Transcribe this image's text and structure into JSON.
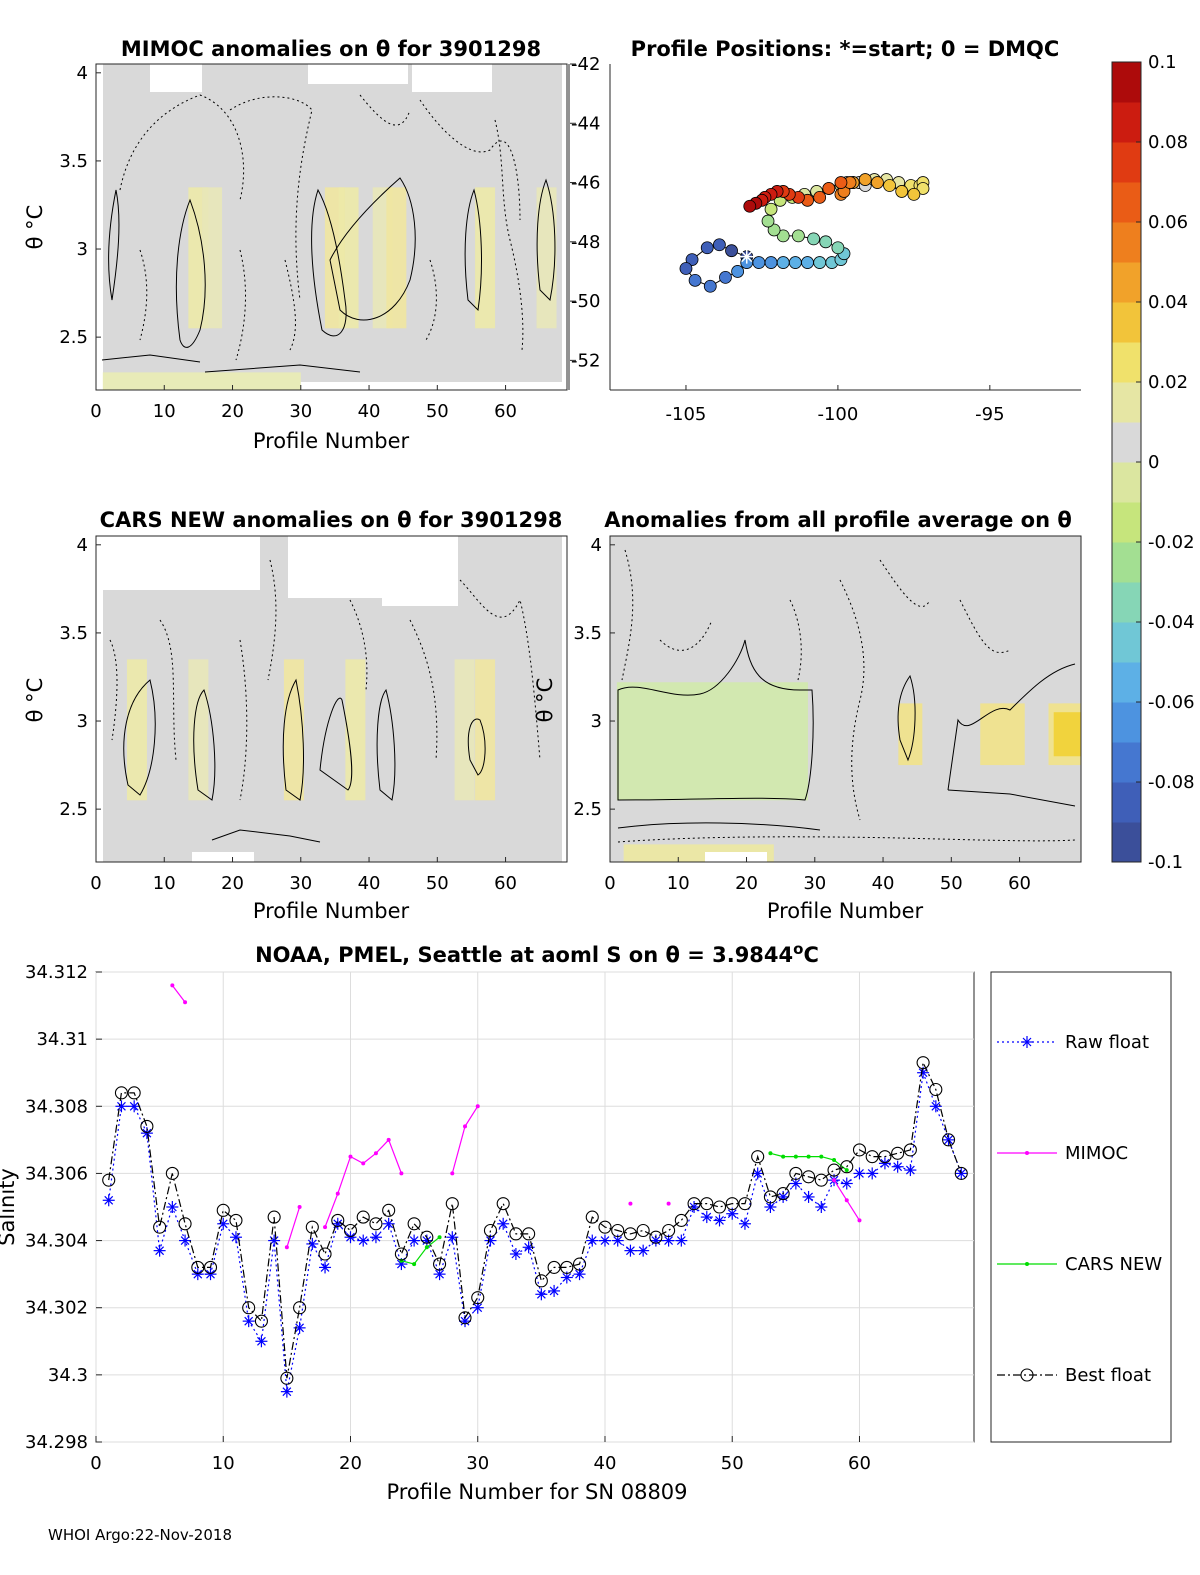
{
  "colorbar": {
    "ticks": [
      "0.1",
      "0.08",
      "0.06",
      "0.04",
      "0.02",
      "0",
      "-0.02",
      "-0.04",
      "-0.06",
      "-0.08",
      "-0.1"
    ],
    "colors": [
      "#3b4f9a",
      "#3f5fb8",
      "#4577d0",
      "#4d93e0",
      "#5db0e6",
      "#70c7d6",
      "#86d6b6",
      "#a3df92",
      "#c6e57c",
      "#dbe6a0",
      "#d9d9d9",
      "#e6e6a4",
      "#f0e16b",
      "#f2c43a",
      "#f1a22a",
      "#ee7f1e",
      "#ea5c16",
      "#e03b12",
      "#cc1c10",
      "#ad0b0b"
    ]
  },
  "footer": "WHOI Argo:22-Nov-2018",
  "chart_data": [
    {
      "type": "heatmap",
      "id": "mimoc",
      "title": "MIMOC anomalies on θ  for 3901298",
      "xlabel": "Profile Number",
      "ylabel": "θ °C",
      "xlim": [
        0,
        69
      ],
      "ylim": [
        2.2,
        4.05
      ],
      "xticks": [
        0,
        10,
        20,
        30,
        40,
        50,
        60
      ],
      "yticks": [
        2.5,
        3,
        3.5,
        4
      ],
      "ytick_labels": [
        "2.5",
        "3",
        "3.5",
        "4"
      ],
      "warm_columns": [
        15,
        17,
        35,
        37,
        42,
        44,
        57,
        66
      ],
      "grid": false
    },
    {
      "type": "scatter",
      "id": "positions",
      "title": "Profile Positions: *=start; 0 = DMQC",
      "xlim": [
        -107.5,
        -92
      ],
      "ylim": [
        -53,
        -42
      ],
      "xticks": [
        -105,
        -100,
        -95
      ],
      "yticks": [
        -42,
        -44,
        -46,
        -48,
        -50,
        -52
      ],
      "ytick_labels": [
        "-42",
        "-44",
        "-46",
        "-48",
        "-50",
        "-52"
      ],
      "start": [
        -103,
        -48.5
      ],
      "lon": [
        -103.0,
        -103.5,
        -103.9,
        -104.3,
        -104.8,
        -105.0,
        -104.7,
        -104.2,
        -103.7,
        -103.3,
        -103.0,
        -102.6,
        -102.2,
        -101.8,
        -101.4,
        -101.0,
        -100.6,
        -100.2,
        -99.9,
        -99.8,
        -100.0,
        -100.4,
        -100.8,
        -101.3,
        -101.8,
        -102.1,
        -102.3,
        -102.2,
        -101.9,
        -101.5,
        -101.1,
        -100.7,
        -100.3,
        -99.9,
        -99.7,
        -99.5,
        -99.3,
        -99.1,
        -98.8,
        -98.4,
        -98.0,
        -97.6,
        -97.3,
        -97.2,
        -97.2,
        -97.5,
        -97.9,
        -98.3,
        -98.7,
        -99.1,
        -99.5,
        -99.8,
        -99.9,
        -99.8,
        -99.6,
        -99.9,
        -100.3,
        -100.6,
        -101.0,
        -101.3,
        -101.6,
        -101.8,
        -102.0,
        -102.2,
        -102.4,
        -102.5,
        -102.7,
        -102.9
      ],
      "lat": [
        -48.5,
        -48.3,
        -48.1,
        -48.2,
        -48.6,
        -48.9,
        -49.3,
        -49.5,
        -49.2,
        -49.0,
        -48.7,
        -48.7,
        -48.7,
        -48.7,
        -48.7,
        -48.7,
        -48.7,
        -48.7,
        -48.6,
        -48.4,
        -48.2,
        -48.0,
        -47.9,
        -47.8,
        -47.8,
        -47.6,
        -47.3,
        -46.9,
        -46.6,
        -46.5,
        -46.4,
        -46.3,
        -46.2,
        -46.1,
        -46.0,
        -46.0,
        -46.0,
        -46.1,
        -45.9,
        -45.9,
        -46.0,
        -46.1,
        -46.1,
        -46.0,
        -46.2,
        -46.4,
        -46.3,
        -46.1,
        -46.0,
        -45.9,
        -46.0,
        -46.2,
        -46.4,
        -46.3,
        -46.0,
        -46.0,
        -46.2,
        -46.5,
        -46.6,
        -46.5,
        -46.4,
        -46.3,
        -46.3,
        -46.4,
        -46.5,
        -46.6,
        -46.7,
        -46.8
      ],
      "grid": false
    },
    {
      "type": "heatmap",
      "id": "cars",
      "title": "CARS NEW anomalies on θ for 3901298",
      "xlabel": "Profile Number",
      "ylabel": "θ °C",
      "xlim": [
        0,
        69
      ],
      "ylim": [
        2.2,
        4.05
      ],
      "xticks": [
        0,
        10,
        20,
        30,
        40,
        50,
        60
      ],
      "yticks": [
        2.5,
        3,
        3.5,
        4
      ],
      "ytick_labels": [
        "2.5",
        "3",
        "3.5",
        "4"
      ],
      "warm_columns": [
        6,
        15,
        29,
        38,
        54,
        57
      ],
      "grid": false
    },
    {
      "type": "heatmap",
      "id": "allavg",
      "title": "Anomalies from all profile average on θ",
      "xlabel": "Profile Number",
      "ylabel": "θ °C",
      "xlim": [
        0,
        69
      ],
      "ylim": [
        2.2,
        4.05
      ],
      "xticks": [
        0,
        10,
        20,
        30,
        40,
        50,
        60
      ],
      "yticks": [
        2.5,
        3,
        3.5,
        4
      ],
      "ytick_labels": [
        "2.5",
        "3",
        "3.5",
        "4"
      ],
      "cool_block": [
        1,
        29,
        2.55,
        3.22
      ],
      "warm_columns": [
        44,
        56,
        59,
        66,
        68
      ],
      "grid": false
    },
    {
      "type": "line",
      "id": "salinity",
      "title": "NOAA, PMEL, Seattle at aoml S on θ = 3.9844",
      "title_superscript": "o",
      "title_suffix": "C",
      "xlabel": "Profile Number for SN 08809",
      "ylabel": "Salinity",
      "xlim": [
        0,
        69
      ],
      "ylim": [
        34.298,
        34.312
      ],
      "xticks": [
        0,
        10,
        20,
        30,
        40,
        50,
        60
      ],
      "yticks": [
        34.298,
        34.3,
        34.302,
        34.304,
        34.306,
        34.308,
        34.31,
        34.312
      ],
      "ytick_labels": [
        "34.298",
        "34.3",
        "34.302",
        "34.304",
        "34.306",
        "34.308",
        "34.31",
        "34.312"
      ],
      "grid": true,
      "legend": "right",
      "series": [
        {
          "name": "Raw float",
          "color": "#0000ff",
          "style": "dotted",
          "marker": "star",
          "x": [
            1,
            2,
            3,
            4,
            5,
            6,
            7,
            8,
            9,
            10,
            11,
            12,
            13,
            14,
            15,
            16,
            17,
            18,
            19,
            20,
            21,
            22,
            23,
            24,
            25,
            26,
            27,
            28,
            29,
            30,
            31,
            32,
            33,
            34,
            35,
            36,
            37,
            38,
            39,
            40,
            41,
            42,
            43,
            44,
            45,
            46,
            47,
            48,
            49,
            50,
            51,
            52,
            53,
            54,
            55,
            56,
            57,
            58,
            59,
            60,
            61,
            62,
            63,
            64,
            65,
            66,
            67,
            68
          ],
          "values": [
            34.3052,
            34.308,
            34.308,
            34.3072,
            34.3037,
            34.305,
            34.304,
            34.303,
            34.303,
            34.3045,
            34.3041,
            34.3016,
            34.301,
            34.304,
            34.2995,
            34.3014,
            34.3039,
            34.3032,
            34.3045,
            34.3041,
            34.304,
            34.3041,
            34.3045,
            34.3033,
            34.304,
            34.304,
            34.303,
            34.3041,
            34.3016,
            34.302,
            34.304,
            34.3045,
            34.3036,
            34.3038,
            34.3024,
            34.3025,
            34.3029,
            34.303,
            34.304,
            34.304,
            34.304,
            34.3037,
            34.3037,
            34.304,
            34.304,
            34.304,
            34.305,
            34.3047,
            34.3046,
            34.3048,
            34.3045,
            34.306,
            34.305,
            34.3053,
            34.3057,
            34.3053,
            34.305,
            34.3058,
            34.3057,
            34.306,
            34.306,
            34.3063,
            34.3062,
            34.3061,
            34.309,
            34.308,
            34.307,
            34.306
          ]
        },
        {
          "name": "MIMOC",
          "color": "#ff00ff",
          "style": "solid",
          "marker": "dot",
          "segments": [
            {
              "x": [
                6,
                7
              ],
              "values": [
                34.3116,
                34.3111
              ]
            },
            {
              "x": [
                15,
                16
              ],
              "values": [
                34.3038,
                34.305
              ]
            },
            {
              "x": [
                18,
                19,
                20,
                21,
                22,
                23,
                24
              ],
              "values": [
                34.3044,
                34.3054,
                34.3065,
                34.3063,
                34.3066,
                34.307,
                34.306
              ]
            },
            {
              "x": [
                28,
                29,
                30
              ],
              "values": [
                34.306,
                34.3074,
                34.308
              ]
            },
            {
              "x": [
                42
              ],
              "values": [
                34.3051
              ]
            },
            {
              "x": [
                45
              ],
              "values": [
                34.3051
              ]
            },
            {
              "x": [
                58,
                59,
                60
              ],
              "values": [
                34.3058,
                34.3052,
                34.3046
              ]
            }
          ]
        },
        {
          "name": "CARS NEW",
          "color": "#00dd00",
          "style": "solid",
          "marker": "dot",
          "segments": [
            {
              "x": [
                24,
                25,
                26,
                27
              ],
              "values": [
                34.3034,
                34.3033,
                34.3038,
                34.3041
              ]
            },
            {
              "x": [
                53,
                54,
                55,
                56,
                57,
                58,
                59
              ],
              "values": [
                34.3066,
                34.3065,
                34.3065,
                34.3065,
                34.3065,
                34.3064,
                34.3061
              ]
            }
          ]
        },
        {
          "name": "Best float",
          "color": "#000000",
          "style": "dashdot",
          "marker": "circle",
          "x": [
            1,
            2,
            3,
            4,
            5,
            6,
            7,
            8,
            9,
            10,
            11,
            12,
            13,
            14,
            15,
            16,
            17,
            18,
            19,
            20,
            21,
            22,
            23,
            24,
            25,
            26,
            27,
            28,
            29,
            30,
            31,
            32,
            33,
            34,
            35,
            36,
            37,
            38,
            39,
            40,
            41,
            42,
            43,
            44,
            45,
            46,
            47,
            48,
            49,
            50,
            51,
            52,
            53,
            54,
            55,
            56,
            57,
            58,
            59,
            60,
            61,
            62,
            63,
            64,
            65,
            66,
            67,
            68
          ],
          "values": [
            34.3058,
            34.3084,
            34.3084,
            34.3074,
            34.3044,
            34.306,
            34.3045,
            34.3032,
            34.3032,
            34.3049,
            34.3046,
            34.302,
            34.3016,
            34.3047,
            34.2999,
            34.302,
            34.3044,
            34.3036,
            34.3046,
            34.3043,
            34.3047,
            34.3045,
            34.3049,
            34.3036,
            34.3045,
            34.3041,
            34.3033,
            34.3051,
            34.3017,
            34.3023,
            34.3043,
            34.3051,
            34.3042,
            34.3042,
            34.3028,
            34.3032,
            34.3032,
            34.3033,
            34.3047,
            34.3044,
            34.3043,
            34.3042,
            34.3043,
            34.3041,
            34.3043,
            34.3046,
            34.3051,
            34.3051,
            34.305,
            34.3051,
            34.3051,
            34.3065,
            34.3053,
            34.3054,
            34.306,
            34.3059,
            34.3058,
            34.3061,
            34.3062,
            34.3067,
            34.3065,
            34.3065,
            34.3066,
            34.3067,
            34.3093,
            34.3085,
            34.307,
            34.306
          ]
        }
      ]
    }
  ]
}
